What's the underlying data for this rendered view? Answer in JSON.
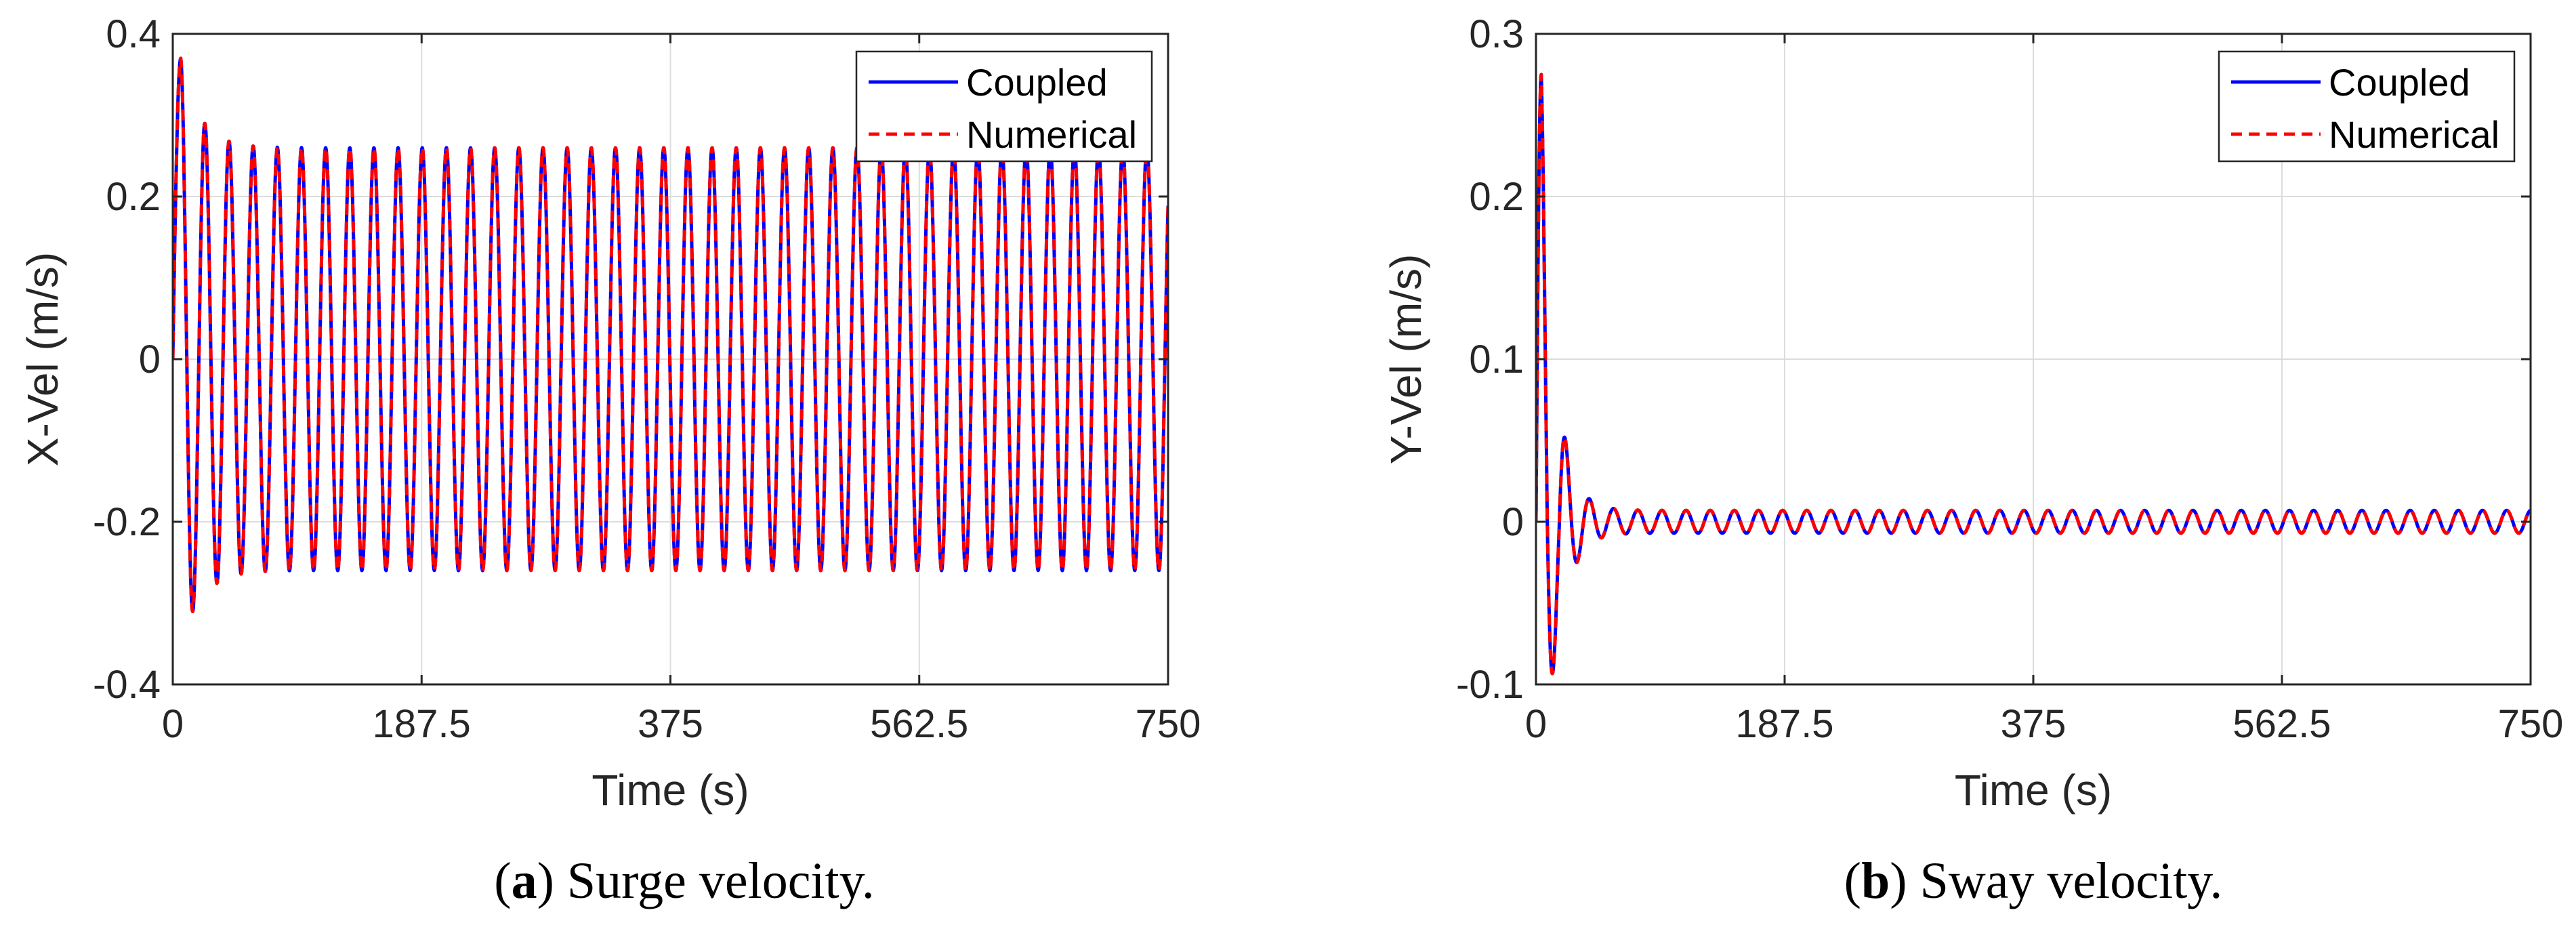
{
  "chart_data": [
    {
      "type": "line",
      "panel": "a",
      "caption_label": "a",
      "caption_text": "Surge velocity.",
      "xlabel": "Time (s)",
      "ylabel": "X-Vel (m/s)",
      "xlim": [
        0,
        750
      ],
      "ylim": [
        -0.4,
        0.4
      ],
      "xticks": [
        0,
        187.5,
        375,
        562.5,
        750
      ],
      "xtick_labels": [
        "0",
        "187.5",
        "375",
        "562.5",
        "750"
      ],
      "yticks": [
        -0.4,
        -0.2,
        0,
        0.2,
        0.4
      ],
      "ytick_labels": [
        "-0.4",
        "-0.2",
        "0",
        "0.2",
        "0.4"
      ],
      "grid": true,
      "legend_position": "top-right",
      "signal": {
        "start": 0,
        "initial_peak": 0.37,
        "initial_peak_time": 6,
        "first_trough": -0.31,
        "steady_amplitude": 0.26,
        "period": 18.2,
        "transient_time": 60
      },
      "series": [
        {
          "name": "Coupled",
          "color": "#0000ff",
          "style": "solid"
        },
        {
          "name": "Numerical",
          "color": "#ff0000",
          "style": "dashed"
        }
      ]
    },
    {
      "type": "line",
      "panel": "b",
      "caption_label": "b",
      "caption_text": "Sway velocity.",
      "xlabel": "Time (s)",
      "ylabel": "Y-Vel (m/s)",
      "xlim": [
        0,
        750
      ],
      "ylim": [
        -0.1,
        0.3
      ],
      "xticks": [
        0,
        187.5,
        375,
        562.5,
        750
      ],
      "xtick_labels": [
        "0",
        "187.5",
        "375",
        "562.5",
        "750"
      ],
      "yticks": [
        -0.1,
        0,
        0.1,
        0.2,
        0.3
      ],
      "ytick_labels": [
        "-0.1",
        "0",
        "0.1",
        "0.2",
        "0.3"
      ],
      "grid": true,
      "legend_position": "top-right",
      "signal": {
        "start": 0,
        "initial_peak": 0.275,
        "initial_peak_time": 4,
        "first_trough": -0.09,
        "steady_amplitude": 0.007,
        "period": 18.2,
        "transient_time": 60
      },
      "series": [
        {
          "name": "Coupled",
          "color": "#0000ff",
          "style": "solid"
        },
        {
          "name": "Numerical",
          "color": "#ff0000",
          "style": "dashed"
        }
      ]
    }
  ]
}
